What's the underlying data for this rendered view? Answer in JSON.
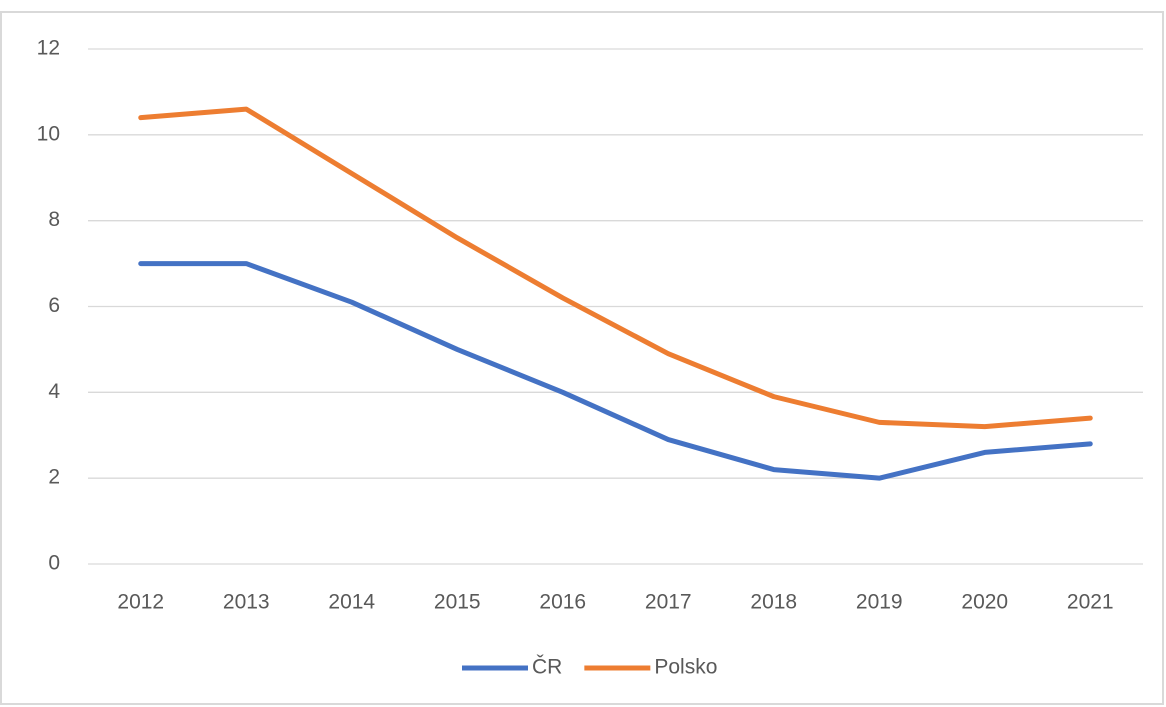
{
  "chart_data": {
    "type": "line",
    "categories": [
      "2012",
      "2013",
      "2014",
      "2015",
      "2016",
      "2017",
      "2018",
      "2019",
      "2020",
      "2021"
    ],
    "series": [
      {
        "name": "ČR",
        "color": "#4472c4",
        "values": [
          7.0,
          7.0,
          6.1,
          5.0,
          4.0,
          2.9,
          2.2,
          2.0,
          2.6,
          2.8
        ]
      },
      {
        "name": "Polsko",
        "color": "#ed7d31",
        "values": [
          10.4,
          10.6,
          9.1,
          7.6,
          6.2,
          4.9,
          3.9,
          3.3,
          3.2,
          3.4
        ]
      }
    ],
    "ylim": [
      0,
      12
    ],
    "yticks": [
      0,
      2,
      4,
      6,
      8,
      10,
      12
    ],
    "grid": true,
    "legend": "bottom"
  }
}
